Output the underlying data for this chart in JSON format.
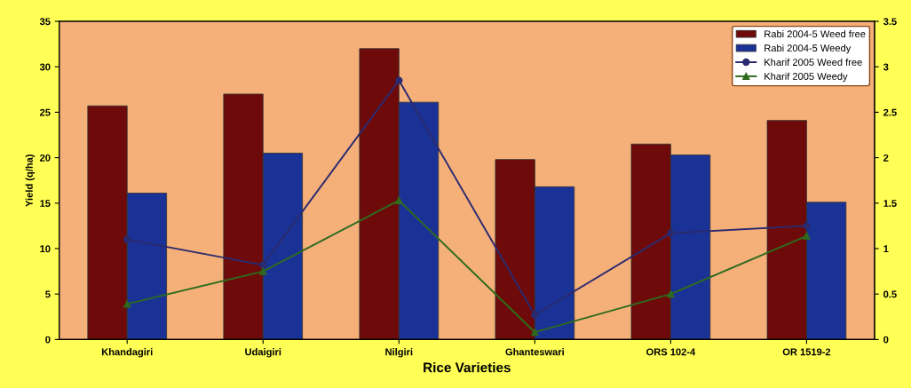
{
  "chart_data": {
    "type": "bar",
    "xlabel": "Rice Varieties",
    "ylabel": "Yield (q/ha)",
    "categories": [
      "Khandagiri",
      "Udaigiri",
      "Nilgiri",
      "Ghanteswari",
      "ORS 102-4",
      "OR 1519-2"
    ],
    "series": [
      {
        "name": "Rabi 2004-5 Weed free",
        "color": "#6e0a0a",
        "values": [
          25.7,
          27,
          32,
          19.8,
          21.5,
          24.1
        ]
      },
      {
        "name": "Rabi 2004-5 Weedy",
        "color": "#1a3296",
        "values": [
          16.1,
          20.5,
          26.1,
          16.8,
          20.3,
          15.1
        ]
      },
      {
        "name": "Kharif 2005 Weed free",
        "type": "line",
        "axis": "y2",
        "marker": "circle",
        "color": "#2b2a6e",
        "values": [
          1.1,
          0.82,
          2.85,
          0.27,
          1.17,
          1.25
        ]
      },
      {
        "name": "Kharif 2005 Weedy",
        "type": "line",
        "axis": "y2",
        "marker": "triangle",
        "color": "#2e6b1e",
        "values": [
          0.39,
          0.75,
          1.53,
          0.08,
          0.5,
          1.14
        ]
      }
    ],
    "ylim": [
      0,
      35
    ],
    "yticks": [
      0,
      5,
      10,
      15,
      20,
      25,
      30,
      35
    ],
    "y2lim": [
      0,
      3.5
    ],
    "y2ticks": [
      0,
      0.5,
      1,
      1.5,
      2,
      2.5,
      3,
      3.5
    ],
    "legend": "top right",
    "grid": false
  }
}
